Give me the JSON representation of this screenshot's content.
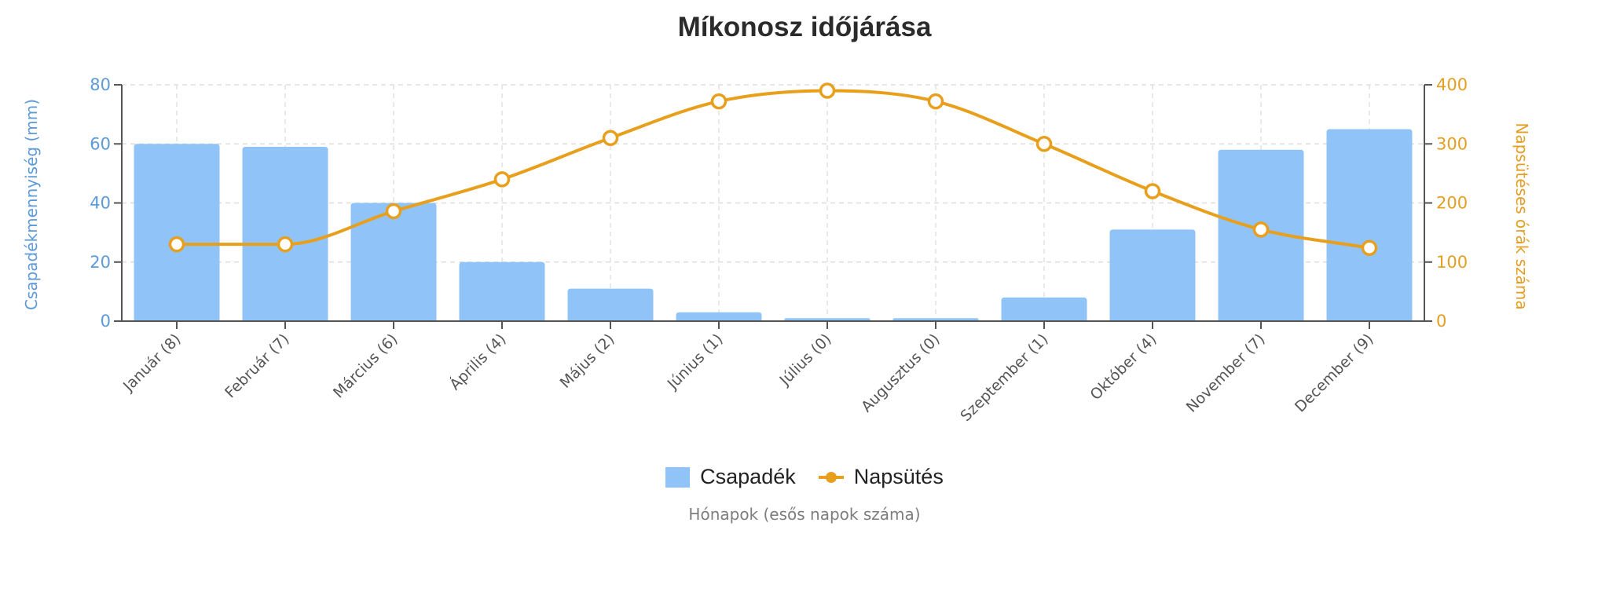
{
  "chart_data": {
    "type": "bar+line",
    "title": "Míkonosz időjárása",
    "xlabel": "Hónapok (esős napok száma)",
    "categories": [
      "Január (8)",
      "Február (7)",
      "Március (6)",
      "Április (4)",
      "Május (2)",
      "Június (1)",
      "Július (0)",
      "Augusztus (0)",
      "Szeptember (1)",
      "Október (4)",
      "November (7)",
      "December (9)"
    ],
    "series": [
      {
        "name": "Csapadék",
        "type": "bar",
        "axis": "left",
        "color": "#90c4f8",
        "values": [
          60,
          59,
          40,
          20,
          11,
          3,
          1,
          1,
          8,
          31,
          58,
          65
        ]
      },
      {
        "name": "Napsütés",
        "type": "line",
        "axis": "right",
        "color": "#e89f1c",
        "values": [
          130,
          130,
          186,
          240,
          310,
          372,
          390,
          372,
          300,
          220,
          155,
          124
        ]
      }
    ],
    "y_left": {
      "label": "Csapadékmennyiség (mm)",
      "range": [
        0,
        80
      ],
      "ticks": [
        0,
        20,
        40,
        60,
        80
      ],
      "color": "#5d9ad8"
    },
    "y_right": {
      "label": "Napsütéses órák száma",
      "range": [
        0,
        400
      ],
      "ticks": [
        0,
        100,
        200,
        300,
        400
      ],
      "color": "#e49f22"
    },
    "grid": true,
    "legend_position": "bottom"
  },
  "legend": {
    "items": [
      {
        "label": "Csapadék",
        "symbol": "bar"
      },
      {
        "label": "Napsütés",
        "symbol": "line-marker"
      }
    ]
  }
}
